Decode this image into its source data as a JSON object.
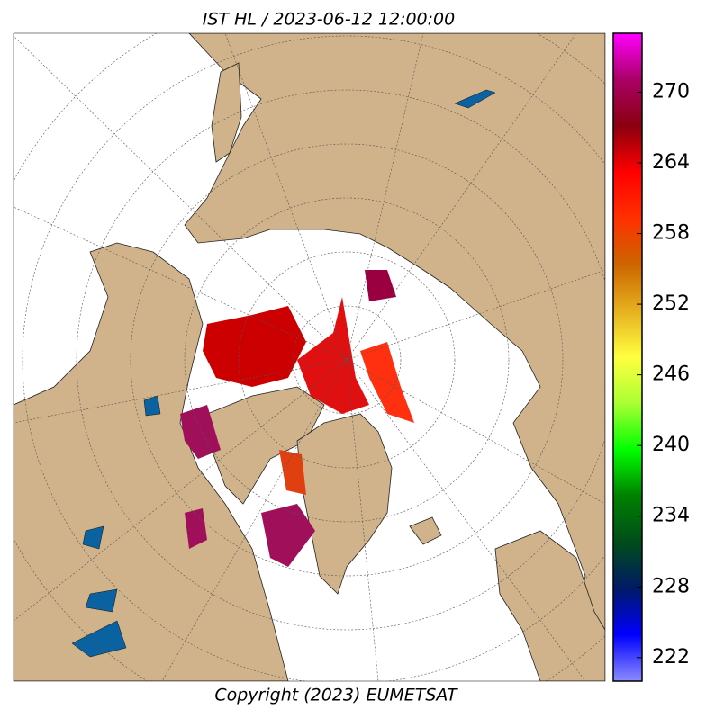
{
  "title": "IST HL / 2023-06-12 12:00:00",
  "copyright": "Copyright (2023)  EUMETSAT",
  "colorbar": {
    "lim": [
      220,
      275
    ],
    "ticks": [
      222,
      228,
      234,
      240,
      246,
      252,
      258,
      264,
      270
    ],
    "colors": [
      "#8c8cff",
      "#0000ff",
      "#001a66",
      "#004d1a",
      "#008000",
      "#00ff00",
      "#aaff33",
      "#ffff40",
      "#e6b020",
      "#cc6600",
      "#ff3000",
      "#ff0000",
      "#8b0010",
      "#aa0066",
      "#ff00ff"
    ]
  }
}
